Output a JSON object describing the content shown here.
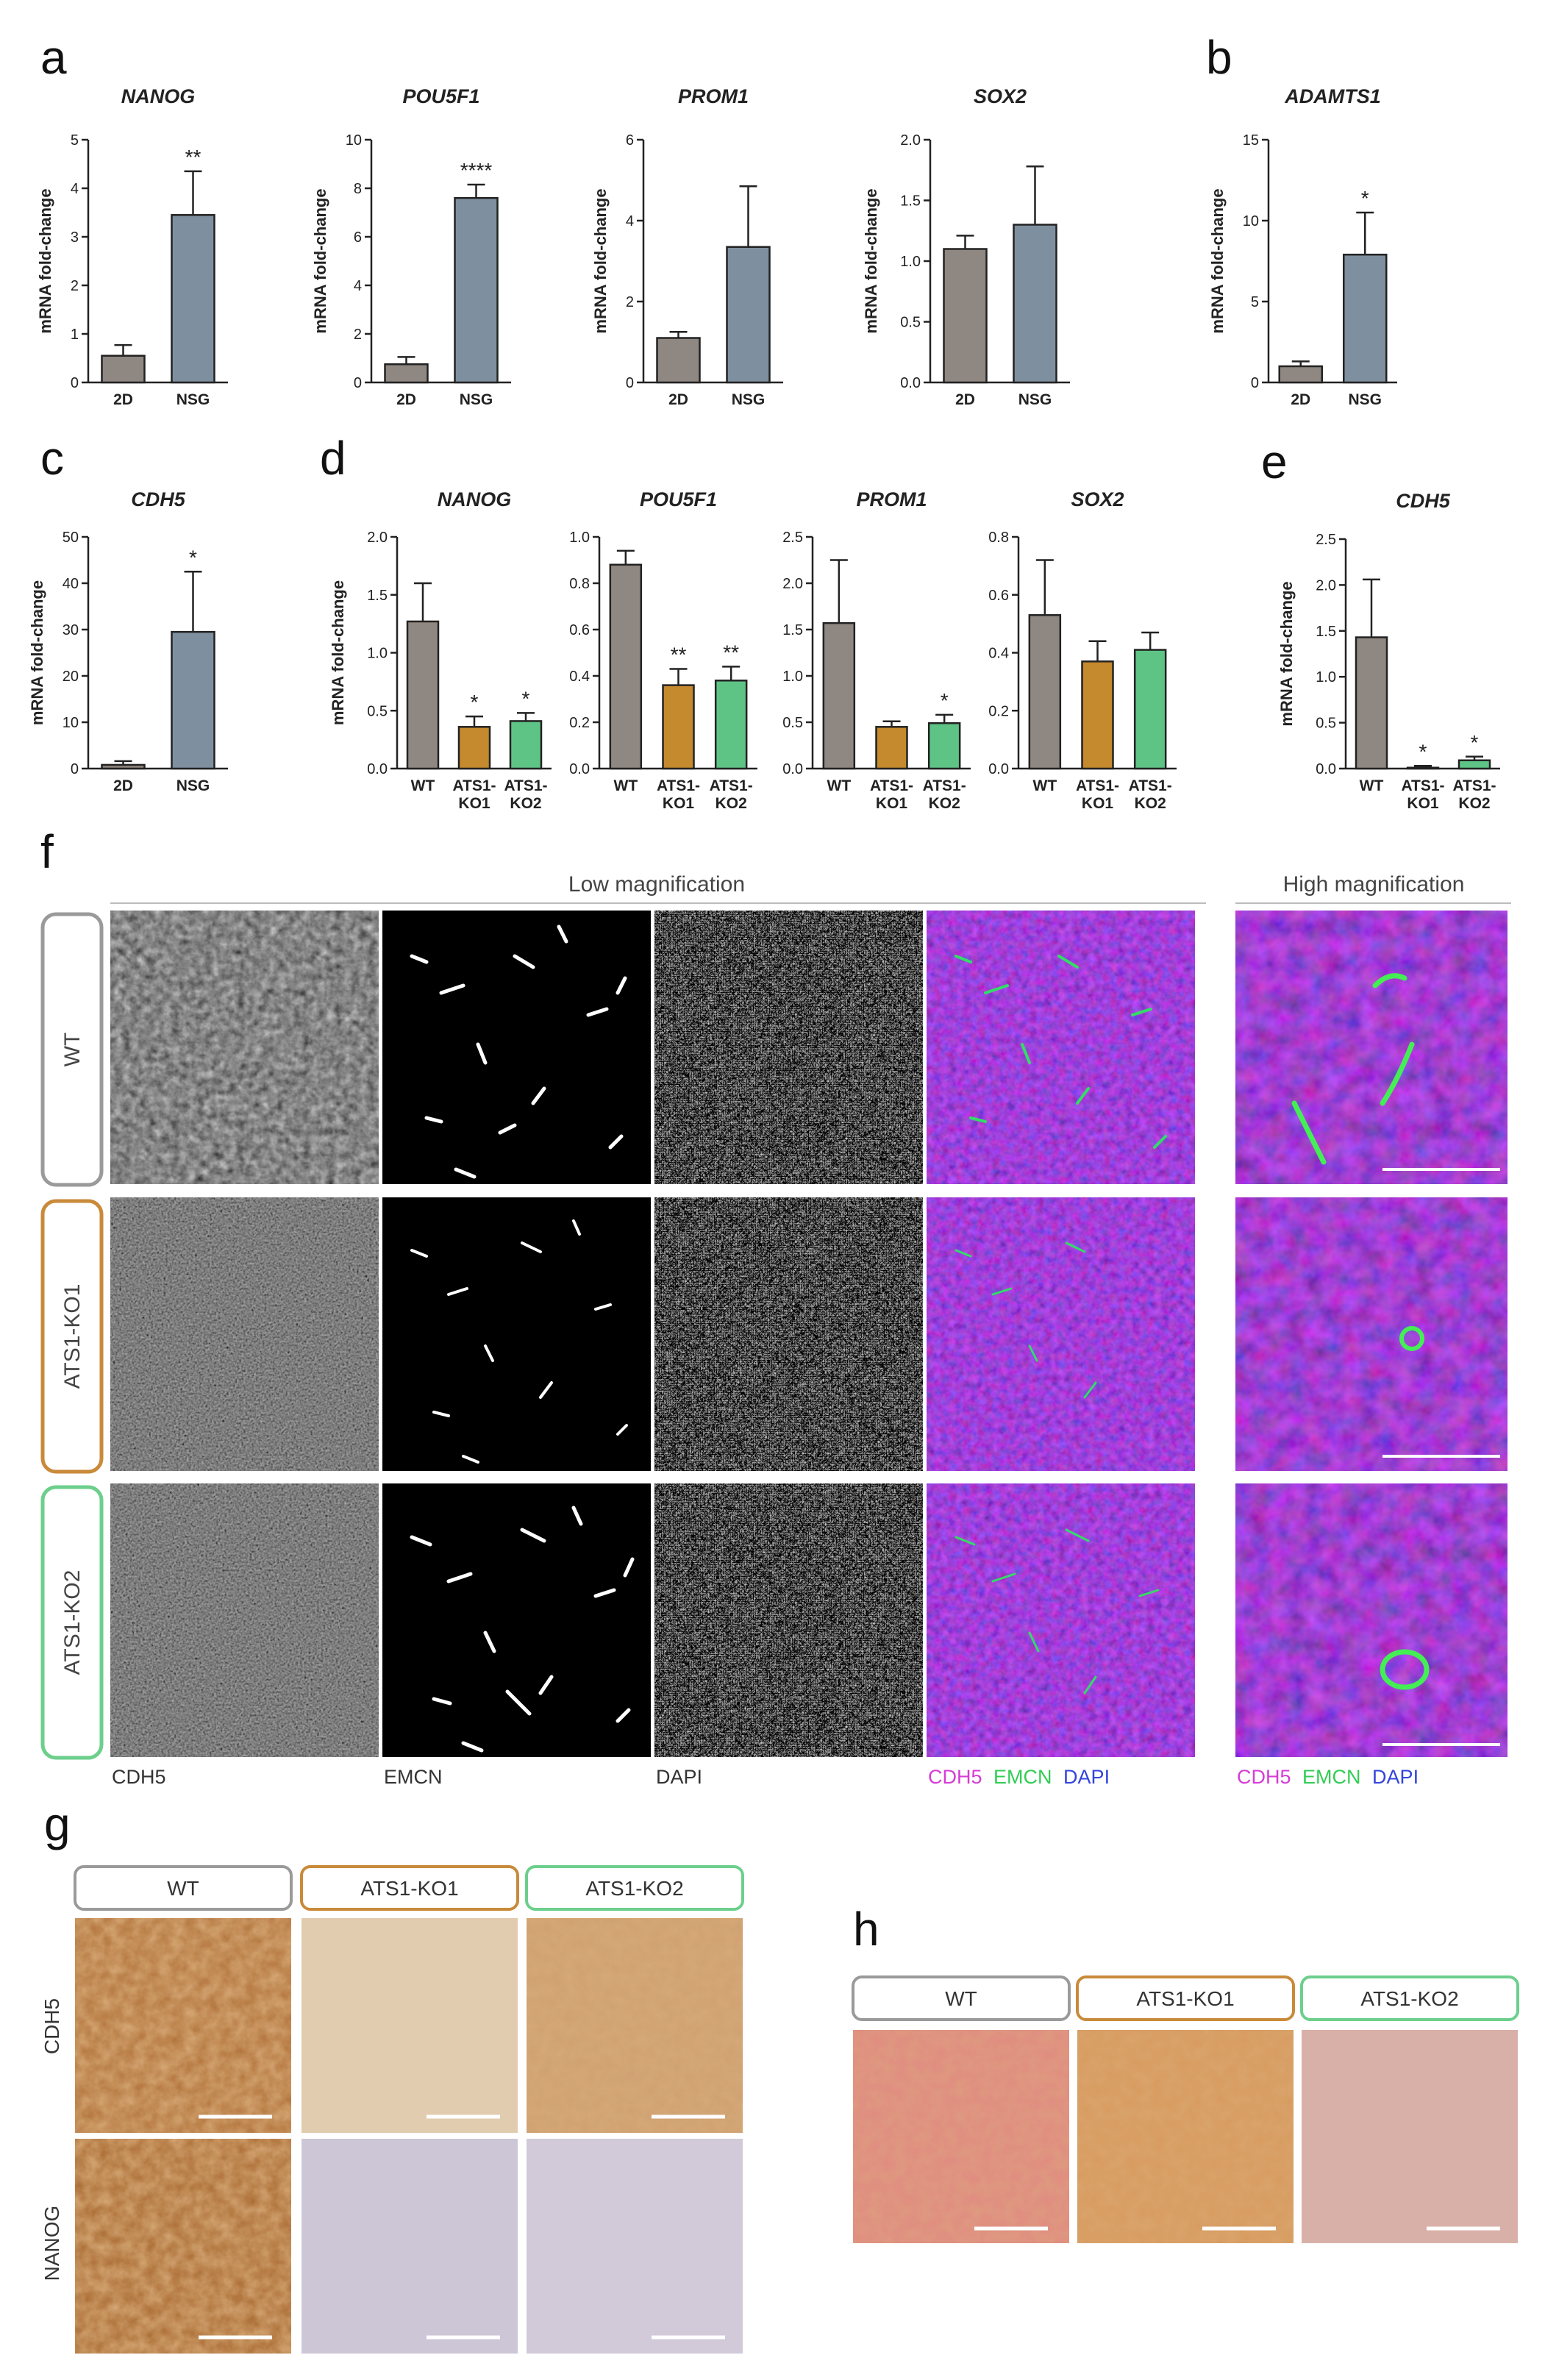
{
  "panel_letters": {
    "a": "a",
    "b": "b",
    "c": "c",
    "d": "d",
    "e": "e",
    "f": "f",
    "g": "g",
    "h": "h"
  },
  "colors": {
    "wt": "#8f8781",
    "nsg": "#7e8f9f",
    "ko1": "#c5892e",
    "ko2": "#5ec486",
    "axis": "#222222",
    "wt_box": "#9a9a9a",
    "ko1_box": "#c98a3a",
    "ko2_box": "#6ccf8c"
  },
  "y_label": "mRNA fold-change",
  "chart_data": [
    {
      "id": "a1",
      "type": "bar",
      "title": "NANOG",
      "ylabel": "mRNA fold-change",
      "categories": [
        "2D",
        "NSG"
      ],
      "values": [
        0.55,
        3.45
      ],
      "errors": [
        0.22,
        0.9
      ],
      "ylim": [
        0,
        5
      ],
      "ticks": [
        "0",
        "1",
        "2",
        "3",
        "4",
        "5"
      ],
      "significance": [
        "",
        "**"
      ]
    },
    {
      "id": "a2",
      "type": "bar",
      "title": "POU5F1",
      "ylabel": "mRNA fold-change",
      "categories": [
        "2D",
        "NSG"
      ],
      "values": [
        0.75,
        7.6
      ],
      "errors": [
        0.3,
        0.55
      ],
      "ylim": [
        0,
        10
      ],
      "ticks": [
        "0",
        "2",
        "4",
        "6",
        "8",
        "10"
      ],
      "significance": [
        "",
        "****"
      ]
    },
    {
      "id": "a3",
      "type": "bar",
      "title": "PROM1",
      "ylabel": "mRNA fold-change",
      "categories": [
        "2D",
        "NSG"
      ],
      "values": [
        1.1,
        3.35
      ],
      "errors": [
        0.15,
        1.5
      ],
      "ylim": [
        0,
        6
      ],
      "ticks": [
        "0",
        "2",
        "4",
        "6"
      ],
      "significance": [
        "",
        ""
      ]
    },
    {
      "id": "a4",
      "type": "bar",
      "title": "SOX2",
      "ylabel": "mRNA fold-change",
      "categories": [
        "2D",
        "NSG"
      ],
      "values": [
        1.1,
        1.3
      ],
      "errors": [
        0.11,
        0.48
      ],
      "ylim": [
        0,
        2
      ],
      "ticks": [
        "0.0",
        "0.5",
        "1.0",
        "1.5",
        "2.0"
      ],
      "significance": [
        "",
        ""
      ]
    },
    {
      "id": "b",
      "type": "bar",
      "title": "ADAMTS1",
      "ylabel": "mRNA fold-change",
      "categories": [
        "2D",
        "NSG"
      ],
      "values": [
        1.0,
        7.9
      ],
      "errors": [
        0.3,
        2.6
      ],
      "ylim": [
        0,
        15
      ],
      "ticks": [
        "0",
        "5",
        "10",
        "15"
      ],
      "significance": [
        "",
        "*"
      ]
    },
    {
      "id": "c",
      "type": "bar",
      "title": "CDH5",
      "ylabel": "mRNA fold-change",
      "categories": [
        "2D",
        "NSG"
      ],
      "values": [
        0.8,
        29.5
      ],
      "errors": [
        0.8,
        13.0
      ],
      "ylim": [
        0,
        50
      ],
      "ticks": [
        "0",
        "10",
        "20",
        "30",
        "40",
        "50"
      ],
      "significance": [
        "",
        "*"
      ]
    },
    {
      "id": "d1",
      "type": "bar",
      "title": "NANOG",
      "ylabel": "mRNA fold-change",
      "categories": [
        "WT",
        "ATS1-|KO1",
        "ATS1-|KO2"
      ],
      "values": [
        1.27,
        0.36,
        0.41
      ],
      "errors": [
        0.33,
        0.09,
        0.07
      ],
      "ylim": [
        0,
        2
      ],
      "ticks": [
        "0.0",
        "0.5",
        "1.0",
        "1.5",
        "2.0"
      ],
      "significance": [
        "",
        "*",
        "*"
      ]
    },
    {
      "id": "d2",
      "type": "bar",
      "title": "POU5F1",
      "ylabel": "",
      "categories": [
        "WT",
        "ATS1-|KO1",
        "ATS1-|KO2"
      ],
      "values": [
        0.88,
        0.36,
        0.38
      ],
      "errors": [
        0.06,
        0.07,
        0.06
      ],
      "ylim": [
        0,
        1
      ],
      "ticks": [
        "0.0",
        "0.2",
        "0.4",
        "0.6",
        "0.8",
        "1.0"
      ],
      "significance": [
        "",
        "**",
        "**"
      ]
    },
    {
      "id": "d3",
      "type": "bar",
      "title": "PROM1",
      "ylabel": "",
      "categories": [
        "WT",
        "ATS1-|KO1",
        "ATS1-|KO2"
      ],
      "values": [
        1.57,
        0.45,
        0.49
      ],
      "errors": [
        0.68,
        0.06,
        0.09
      ],
      "ylim": [
        0,
        2.5
      ],
      "ticks": [
        "0.0",
        "0.5",
        "1.0",
        "1.5",
        "2.0",
        "2.5"
      ],
      "significance": [
        "",
        "",
        "*"
      ]
    },
    {
      "id": "d4",
      "type": "bar",
      "title": "SOX2",
      "ylabel": "",
      "categories": [
        "WT",
        "ATS1-|KO1",
        "ATS1-|KO2"
      ],
      "values": [
        0.53,
        0.37,
        0.41
      ],
      "errors": [
        0.19,
        0.07,
        0.06
      ],
      "ylim": [
        0,
        0.8
      ],
      "ticks": [
        "0.0",
        "0.2",
        "0.4",
        "0.6",
        "0.8"
      ],
      "significance": [
        "",
        "",
        ""
      ]
    },
    {
      "id": "e",
      "type": "bar",
      "title": "CDH5",
      "ylabel": "mRNA fold-change",
      "categories": [
        "WT",
        "ATS1-|KO1",
        "ATS1-|KO2"
      ],
      "values": [
        1.43,
        0.01,
        0.09
      ],
      "errors": [
        0.63,
        0.02,
        0.04
      ],
      "ylim": [
        0,
        2.5
      ],
      "ticks": [
        "0.0",
        "0.5",
        "1.0",
        "1.5",
        "2.0",
        "2.5"
      ],
      "significance": [
        "",
        "*",
        "*"
      ]
    }
  ],
  "panel_f": {
    "low_title": "Low magnification",
    "high_title": "High magnification",
    "rows": [
      "WT",
      "ATS1-KO1",
      "ATS1-KO2"
    ],
    "channels": [
      "CDH5",
      "EMCN",
      "DAPI"
    ],
    "merge_parts": [
      "CDH5",
      "EMCN",
      "DAPI"
    ]
  },
  "panel_g": {
    "columns": [
      "WT",
      "ATS1-KO1",
      "ATS1-KO2"
    ],
    "rows": [
      "CDH5",
      "NANOG"
    ]
  },
  "panel_h": {
    "columns": [
      "WT",
      "ATS1-KO1",
      "ATS1-KO2"
    ]
  }
}
